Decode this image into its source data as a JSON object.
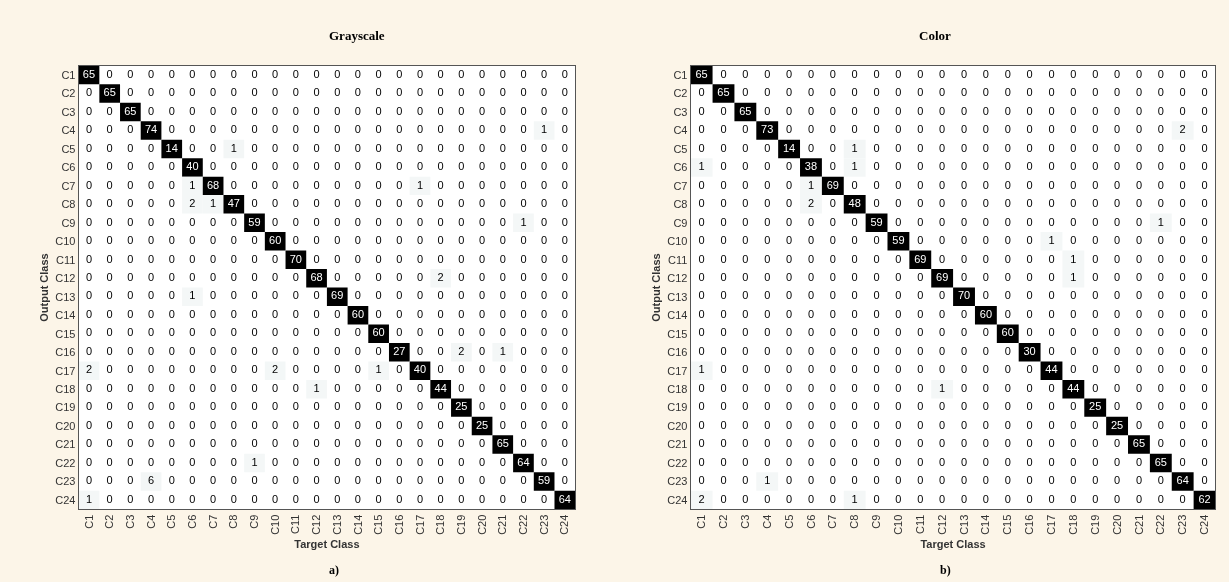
{
  "chart_data": [
    {
      "type": "heatmap",
      "title": "Grayscale",
      "xlabel": "Target Class",
      "ylabel": "Output Class",
      "annotations": [
        "a)"
      ],
      "data_labels": true,
      "grid": false,
      "categories": [
        "C1",
        "C2",
        "C3",
        "C4",
        "C5",
        "C6",
        "C7",
        "C8",
        "C9",
        "C10",
        "C11",
        "C12",
        "C13",
        "C14",
        "C15",
        "C16",
        "C17",
        "C18",
        "C19",
        "C20",
        "C21",
        "C22",
        "C23",
        "C24"
      ],
      "y_categories": [
        "C1",
        "C2",
        "C3",
        "C4",
        "C5",
        "C6",
        "C7",
        "C8",
        "C9",
        "C10",
        "C11",
        "C12",
        "C13",
        "C14",
        "C15",
        "C16",
        "C17",
        "C18",
        "C19",
        "C20",
        "C21",
        "C22",
        "C23",
        "C24"
      ],
      "cells": [
        [
          65,
          0,
          0,
          0,
          0,
          0,
          0,
          0,
          0,
          0,
          0,
          0,
          0,
          0,
          0,
          0,
          0,
          0,
          0,
          0,
          0,
          0,
          0,
          0
        ],
        [
          0,
          65,
          0,
          0,
          0,
          0,
          0,
          0,
          0,
          0,
          0,
          0,
          0,
          0,
          0,
          0,
          0,
          0,
          0,
          0,
          0,
          0,
          0,
          0
        ],
        [
          0,
          0,
          65,
          0,
          0,
          0,
          0,
          0,
          0,
          0,
          0,
          0,
          0,
          0,
          0,
          0,
          0,
          0,
          0,
          0,
          0,
          0,
          0,
          0
        ],
        [
          0,
          0,
          0,
          74,
          0,
          0,
          0,
          0,
          0,
          0,
          0,
          0,
          0,
          0,
          0,
          0,
          0,
          0,
          0,
          0,
          0,
          0,
          1,
          0
        ],
        [
          0,
          0,
          0,
          0,
          14,
          0,
          0,
          1,
          0,
          0,
          0,
          0,
          0,
          0,
          0,
          0,
          0,
          0,
          0,
          0,
          0,
          0,
          0,
          0
        ],
        [
          0,
          0,
          0,
          0,
          0,
          40,
          0,
          0,
          0,
          0,
          0,
          0,
          0,
          0,
          0,
          0,
          0,
          0,
          0,
          0,
          0,
          0,
          0,
          0
        ],
        [
          0,
          0,
          0,
          0,
          0,
          1,
          68,
          0,
          0,
          0,
          0,
          0,
          0,
          0,
          0,
          0,
          1,
          0,
          0,
          0,
          0,
          0,
          0,
          0
        ],
        [
          0,
          0,
          0,
          0,
          0,
          2,
          1,
          47,
          0,
          0,
          0,
          0,
          0,
          0,
          0,
          0,
          0,
          0,
          0,
          0,
          0,
          0,
          0,
          0
        ],
        [
          0,
          0,
          0,
          0,
          0,
          0,
          0,
          0,
          59,
          0,
          0,
          0,
          0,
          0,
          0,
          0,
          0,
          0,
          0,
          0,
          0,
          1,
          0,
          0
        ],
        [
          0,
          0,
          0,
          0,
          0,
          0,
          0,
          0,
          0,
          60,
          0,
          0,
          0,
          0,
          0,
          0,
          0,
          0,
          0,
          0,
          0,
          0,
          0,
          0
        ],
        [
          0,
          0,
          0,
          0,
          0,
          0,
          0,
          0,
          0,
          0,
          70,
          0,
          0,
          0,
          0,
          0,
          0,
          0,
          0,
          0,
          0,
          0,
          0,
          0
        ],
        [
          0,
          0,
          0,
          0,
          0,
          0,
          0,
          0,
          0,
          0,
          0,
          68,
          0,
          0,
          0,
          0,
          0,
          2,
          0,
          0,
          0,
          0,
          0,
          0
        ],
        [
          0,
          0,
          0,
          0,
          0,
          1,
          0,
          0,
          0,
          0,
          0,
          0,
          69,
          0,
          0,
          0,
          0,
          0,
          0,
          0,
          0,
          0,
          0,
          0
        ],
        [
          0,
          0,
          0,
          0,
          0,
          0,
          0,
          0,
          0,
          0,
          0,
          0,
          0,
          60,
          0,
          0,
          0,
          0,
          0,
          0,
          0,
          0,
          0,
          0
        ],
        [
          0,
          0,
          0,
          0,
          0,
          0,
          0,
          0,
          0,
          0,
          0,
          0,
          0,
          0,
          60,
          0,
          0,
          0,
          0,
          0,
          0,
          0,
          0,
          0
        ],
        [
          0,
          0,
          0,
          0,
          0,
          0,
          0,
          0,
          0,
          0,
          0,
          0,
          0,
          0,
          0,
          27,
          0,
          0,
          2,
          0,
          1,
          0,
          0,
          0
        ],
        [
          2,
          0,
          0,
          0,
          0,
          0,
          0,
          0,
          0,
          2,
          0,
          0,
          0,
          0,
          1,
          0,
          40,
          0,
          0,
          0,
          0,
          0,
          0,
          0
        ],
        [
          0,
          0,
          0,
          0,
          0,
          0,
          0,
          0,
          0,
          0,
          0,
          1,
          0,
          0,
          0,
          0,
          0,
          44,
          0,
          0,
          0,
          0,
          0,
          0
        ],
        [
          0,
          0,
          0,
          0,
          0,
          0,
          0,
          0,
          0,
          0,
          0,
          0,
          0,
          0,
          0,
          0,
          0,
          0,
          25,
          0,
          0,
          0,
          0,
          0
        ],
        [
          0,
          0,
          0,
          0,
          0,
          0,
          0,
          0,
          0,
          0,
          0,
          0,
          0,
          0,
          0,
          0,
          0,
          0,
          0,
          25,
          0,
          0,
          0,
          0
        ],
        [
          0,
          0,
          0,
          0,
          0,
          0,
          0,
          0,
          0,
          0,
          0,
          0,
          0,
          0,
          0,
          0,
          0,
          0,
          0,
          0,
          65,
          0,
          0,
          0
        ],
        [
          0,
          0,
          0,
          0,
          0,
          0,
          0,
          0,
          1,
          0,
          0,
          0,
          0,
          0,
          0,
          0,
          0,
          0,
          0,
          0,
          0,
          64,
          0,
          0
        ],
        [
          0,
          0,
          0,
          6,
          0,
          0,
          0,
          0,
          0,
          0,
          0,
          0,
          0,
          0,
          0,
          0,
          0,
          0,
          0,
          0,
          0,
          0,
          59,
          0
        ],
        [
          1,
          0,
          0,
          0,
          0,
          0,
          0,
          0,
          0,
          0,
          0,
          0,
          0,
          0,
          0,
          0,
          0,
          0,
          0,
          0,
          0,
          0,
          0,
          64
        ]
      ]
    },
    {
      "type": "heatmap",
      "title": "Color",
      "xlabel": "Target Class",
      "ylabel": "Output Class",
      "annotations": [
        "b)"
      ],
      "data_labels": true,
      "grid": false,
      "categories": [
        "C1",
        "C2",
        "C3",
        "C4",
        "C5",
        "C6",
        "C7",
        "C8",
        "C9",
        "C10",
        "C11",
        "C12",
        "C13",
        "C14",
        "C15",
        "C16",
        "C17",
        "C18",
        "C19",
        "C20",
        "C21",
        "C22",
        "C23",
        "C24"
      ],
      "y_categories": [
        "C1",
        "C2",
        "C3",
        "C4",
        "C5",
        "C6",
        "C7",
        "C8",
        "C9",
        "C10",
        "C11",
        "C12",
        "C13",
        "C14",
        "C15",
        "C16",
        "C17",
        "C18",
        "C19",
        "C20",
        "C21",
        "C22",
        "C23",
        "C24"
      ],
      "cells": [
        [
          65,
          0,
          0,
          0,
          0,
          0,
          0,
          0,
          0,
          0,
          0,
          0,
          0,
          0,
          0,
          0,
          0,
          0,
          0,
          0,
          0,
          0,
          0,
          0
        ],
        [
          0,
          65,
          0,
          0,
          0,
          0,
          0,
          0,
          0,
          0,
          0,
          0,
          0,
          0,
          0,
          0,
          0,
          0,
          0,
          0,
          0,
          0,
          0,
          0
        ],
        [
          0,
          0,
          65,
          0,
          0,
          0,
          0,
          0,
          0,
          0,
          0,
          0,
          0,
          0,
          0,
          0,
          0,
          0,
          0,
          0,
          0,
          0,
          0,
          0
        ],
        [
          0,
          0,
          0,
          73,
          0,
          0,
          0,
          0,
          0,
          0,
          0,
          0,
          0,
          0,
          0,
          0,
          0,
          0,
          0,
          0,
          0,
          0,
          2,
          0
        ],
        [
          0,
          0,
          0,
          0,
          14,
          0,
          0,
          1,
          0,
          0,
          0,
          0,
          0,
          0,
          0,
          0,
          0,
          0,
          0,
          0,
          0,
          0,
          0,
          0
        ],
        [
          1,
          0,
          0,
          0,
          0,
          38,
          0,
          1,
          0,
          0,
          0,
          0,
          0,
          0,
          0,
          0,
          0,
          0,
          0,
          0,
          0,
          0,
          0,
          0
        ],
        [
          0,
          0,
          0,
          0,
          0,
          1,
          69,
          0,
          0,
          0,
          0,
          0,
          0,
          0,
          0,
          0,
          0,
          0,
          0,
          0,
          0,
          0,
          0,
          0
        ],
        [
          0,
          0,
          0,
          0,
          0,
          2,
          0,
          48,
          0,
          0,
          0,
          0,
          0,
          0,
          0,
          0,
          0,
          0,
          0,
          0,
          0,
          0,
          0,
          0
        ],
        [
          0,
          0,
          0,
          0,
          0,
          0,
          0,
          0,
          59,
          0,
          0,
          0,
          0,
          0,
          0,
          0,
          0,
          0,
          0,
          0,
          0,
          1,
          0,
          0
        ],
        [
          0,
          0,
          0,
          0,
          0,
          0,
          0,
          0,
          0,
          59,
          0,
          0,
          0,
          0,
          0,
          0,
          1,
          0,
          0,
          0,
          0,
          0,
          0,
          0
        ],
        [
          0,
          0,
          0,
          0,
          0,
          0,
          0,
          0,
          0,
          0,
          69,
          0,
          0,
          0,
          0,
          0,
          0,
          1,
          0,
          0,
          0,
          0,
          0,
          0
        ],
        [
          0,
          0,
          0,
          0,
          0,
          0,
          0,
          0,
          0,
          0,
          0,
          69,
          0,
          0,
          0,
          0,
          0,
          1,
          0,
          0,
          0,
          0,
          0,
          0
        ],
        [
          0,
          0,
          0,
          0,
          0,
          0,
          0,
          0,
          0,
          0,
          0,
          0,
          70,
          0,
          0,
          0,
          0,
          0,
          0,
          0,
          0,
          0,
          0,
          0
        ],
        [
          0,
          0,
          0,
          0,
          0,
          0,
          0,
          0,
          0,
          0,
          0,
          0,
          0,
          60,
          0,
          0,
          0,
          0,
          0,
          0,
          0,
          0,
          0,
          0
        ],
        [
          0,
          0,
          0,
          0,
          0,
          0,
          0,
          0,
          0,
          0,
          0,
          0,
          0,
          0,
          60,
          0,
          0,
          0,
          0,
          0,
          0,
          0,
          0,
          0
        ],
        [
          0,
          0,
          0,
          0,
          0,
          0,
          0,
          0,
          0,
          0,
          0,
          0,
          0,
          0,
          0,
          30,
          0,
          0,
          0,
          0,
          0,
          0,
          0,
          0
        ],
        [
          1,
          0,
          0,
          0,
          0,
          0,
          0,
          0,
          0,
          0,
          0,
          0,
          0,
          0,
          0,
          0,
          44,
          0,
          0,
          0,
          0,
          0,
          0,
          0
        ],
        [
          0,
          0,
          0,
          0,
          0,
          0,
          0,
          0,
          0,
          0,
          0,
          1,
          0,
          0,
          0,
          0,
          0,
          44,
          0,
          0,
          0,
          0,
          0,
          0
        ],
        [
          0,
          0,
          0,
          0,
          0,
          0,
          0,
          0,
          0,
          0,
          0,
          0,
          0,
          0,
          0,
          0,
          0,
          0,
          25,
          0,
          0,
          0,
          0,
          0
        ],
        [
          0,
          0,
          0,
          0,
          0,
          0,
          0,
          0,
          0,
          0,
          0,
          0,
          0,
          0,
          0,
          0,
          0,
          0,
          0,
          25,
          0,
          0,
          0,
          0
        ],
        [
          0,
          0,
          0,
          0,
          0,
          0,
          0,
          0,
          0,
          0,
          0,
          0,
          0,
          0,
          0,
          0,
          0,
          0,
          0,
          0,
          65,
          0,
          0,
          0
        ],
        [
          0,
          0,
          0,
          0,
          0,
          0,
          0,
          0,
          0,
          0,
          0,
          0,
          0,
          0,
          0,
          0,
          0,
          0,
          0,
          0,
          0,
          65,
          0,
          0
        ],
        [
          0,
          0,
          0,
          1,
          0,
          0,
          0,
          0,
          0,
          0,
          0,
          0,
          0,
          0,
          0,
          0,
          0,
          0,
          0,
          0,
          0,
          0,
          64,
          0
        ],
        [
          2,
          0,
          0,
          0,
          0,
          0,
          0,
          1,
          0,
          0,
          0,
          0,
          0,
          0,
          0,
          0,
          0,
          0,
          0,
          0,
          0,
          0,
          0,
          62
        ]
      ]
    }
  ]
}
